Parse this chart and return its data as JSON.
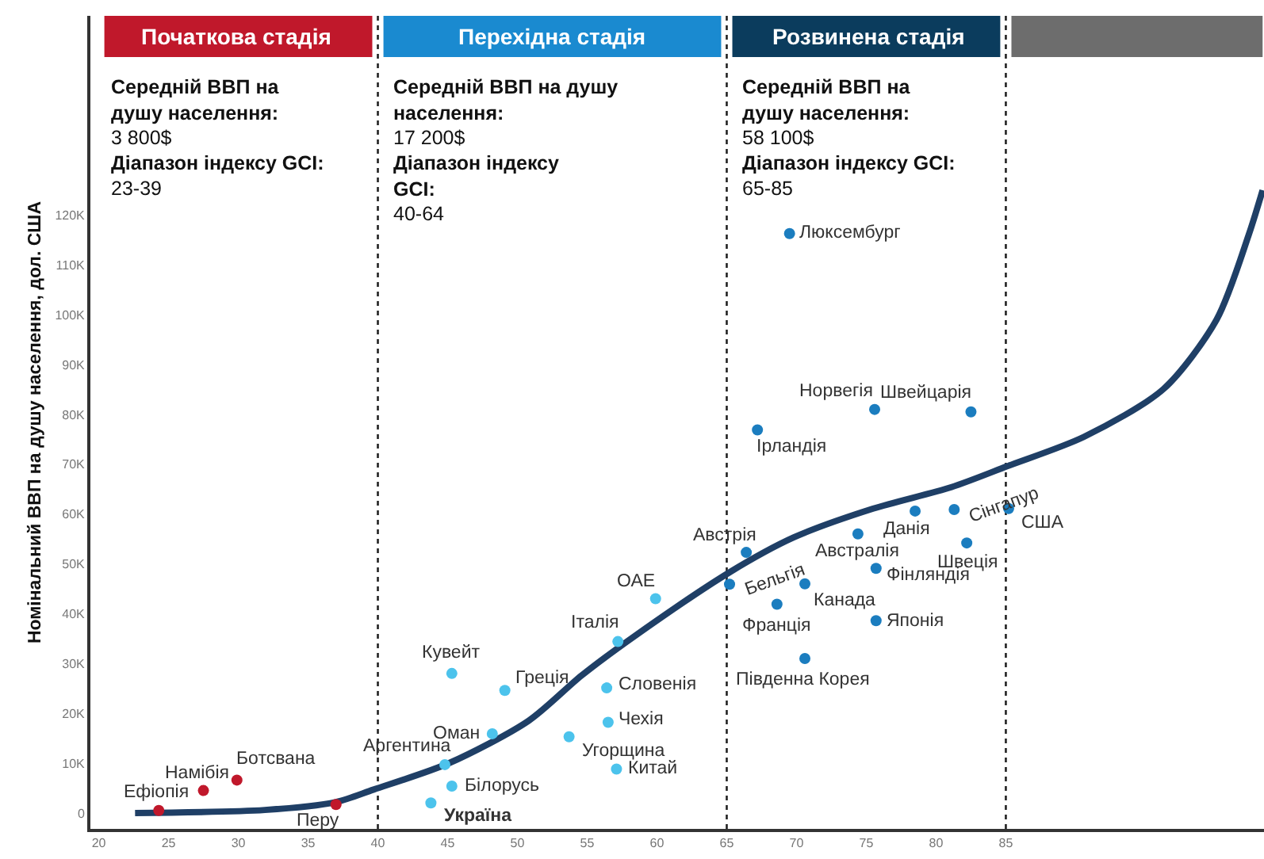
{
  "chart_data": {
    "type": "scatter",
    "ylabel": "Номінальний ВВП на душу населення, дол. США",
    "xlim": [
      19.4,
      103.5
    ],
    "xticks": [
      20,
      25,
      30,
      35,
      40,
      45,
      50,
      55,
      60,
      65,
      70,
      75,
      80,
      85
    ],
    "ylim": [
      -3200,
      160000
    ],
    "yticks": [
      {
        "value": 0,
        "label": "0"
      },
      {
        "value": 10000,
        "label": "10K"
      },
      {
        "value": 20000,
        "label": "20K"
      },
      {
        "value": 30000,
        "label": "30K"
      },
      {
        "value": 40000,
        "label": "40K"
      },
      {
        "value": 50000,
        "label": "50K"
      },
      {
        "value": 60000,
        "label": "60K"
      },
      {
        "value": 70000,
        "label": "70K"
      },
      {
        "value": 80000,
        "label": "80K"
      },
      {
        "value": 90000,
        "label": "90K"
      },
      {
        "value": 100000,
        "label": "100K"
      },
      {
        "value": 110000,
        "label": "110K"
      },
      {
        "value": 120000,
        "label": "120K"
      }
    ],
    "marker": "circle",
    "series": [
      {
        "color": "#c0182b",
        "x": [
          24.3,
          27.5,
          29.9,
          37.0
        ],
        "values": [
          500,
          4500,
          6600,
          1700
        ]
      },
      {
        "color": "#4cc3ec",
        "x": [
          44.8,
          45.3,
          49.1,
          48.2,
          45.3,
          43.8,
          57.2,
          56.4,
          56.5,
          53.7,
          57.1,
          59.9
        ],
        "values": [
          9700,
          28000,
          24600,
          15900,
          5400,
          2000,
          34400,
          25100,
          18200,
          15300,
          8800,
          43000
        ]
      },
      {
        "color": "#1b7dbf",
        "x": [
          69.5,
          75.6,
          82.5,
          67.2,
          66.4,
          65.2,
          74.4,
          78.5,
          81.3,
          85.2,
          82.2,
          75.7,
          70.6,
          68.6,
          75.7,
          70.6
        ],
        "values": [
          116300,
          81000,
          80500,
          76900,
          52300,
          45900,
          56000,
          60600,
          60900,
          61100,
          54200,
          49100,
          46000,
          41900,
          38600,
          31000
        ]
      },
      {
        "type": "line",
        "color": "#1f3f66",
        "line_style": "solid",
        "marker": "none",
        "x": [
          22.6,
          31.9,
          37.0,
          39.7,
          45.1,
          50.8,
          54.6,
          58.4,
          65.2,
          69.8,
          75.5,
          81.1,
          85.1,
          90.6,
          96.3,
          100.1,
          102.4,
          103.4
        ],
        "values": [
          0,
          600,
          2200,
          4700,
          10000,
          18500,
          27600,
          35500,
          48300,
          55300,
          61100,
          65400,
          69600,
          75500,
          85100,
          99000,
          116000,
          125000
        ]
      }
    ],
    "ref_lines": [
      {
        "axis": "x",
        "value": 40,
        "line_style": "dotted",
        "color": "#222222"
      },
      {
        "axis": "x",
        "value": 65,
        "line_style": "dotted",
        "color": "#222222"
      },
      {
        "axis": "x",
        "value": 85,
        "line_style": "dotted",
        "color": "#222222"
      }
    ],
    "annotations": [
      "Початкова стадія",
      "Середній ВВП на\nдушу населення:",
      "3 800$",
      "Діапазон індексу GCI:",
      "23-39",
      "Перехідна стадія",
      "Середній ВВП на душу\nнаселення:",
      "17 200$",
      "Діапазон індексу\nGCI:",
      "40-64",
      "Розвинена стадія",
      "Середній ВВП на\nдушу населення:",
      "58 100$",
      "Діапазон індексу GCI:",
      "65-85",
      {
        "text": "Ефіопія",
        "x": 24.3,
        "y": 500
      },
      {
        "text": "Намібія",
        "x": 27.5,
        "y": 4500
      },
      {
        "text": "Ботсвана",
        "x": 29.9,
        "y": 6600
      },
      {
        "text": "Перу",
        "x": 37.0,
        "y": 1700
      },
      {
        "text": "Аргентина",
        "x": 44.8,
        "y": 9700
      },
      {
        "text": "Кувейт",
        "x": 45.3,
        "y": 28000
      },
      {
        "text": "Греція",
        "x": 49.1,
        "y": 24600
      },
      {
        "text": "Оман",
        "x": 48.2,
        "y": 15900
      },
      {
        "text": "Білорусь",
        "x": 45.3,
        "y": 5400
      },
      {
        "text": "Україна",
        "x": 43.8,
        "y": 2000
      },
      {
        "text": "Італія",
        "x": 57.2,
        "y": 34400
      },
      {
        "text": "Словенія",
        "x": 56.4,
        "y": 25100
      },
      {
        "text": "Чехія",
        "x": 56.5,
        "y": 18200
      },
      {
        "text": "Угорщина",
        "x": 53.7,
        "y": 15300
      },
      {
        "text": "Китай",
        "x": 57.1,
        "y": 8800
      },
      {
        "text": "ОАЕ",
        "x": 59.9,
        "y": 43000
      },
      {
        "text": "Люксембург",
        "x": 69.5,
        "y": 116300
      },
      {
        "text": "Норвегія",
        "x": 75.6,
        "y": 81000
      },
      {
        "text": "Швейцарія",
        "x": 82.5,
        "y": 80500
      },
      {
        "text": "Ірландія",
        "x": 67.2,
        "y": 76900
      },
      {
        "text": "Австрія",
        "x": 66.4,
        "y": 52300
      },
      {
        "text": "Бельгія",
        "x": 65.2,
        "y": 45900
      },
      {
        "text": "Австралія",
        "x": 74.4,
        "y": 56000
      },
      {
        "text": "Данія",
        "x": 78.5,
        "y": 60600
      },
      {
        "text": "Сінгапур",
        "x": 81.3,
        "y": 60900
      },
      {
        "text": "США",
        "x": 85.2,
        "y": 61100
      },
      {
        "text": "Швеція",
        "x": 82.2,
        "y": 54200
      },
      {
        "text": "Фінляндія",
        "x": 75.7,
        "y": 49100
      },
      {
        "text": "Канада",
        "x": 70.6,
        "y": 46000
      },
      {
        "text": "Франція",
        "x": 68.6,
        "y": 41900
      },
      {
        "text": "Японія",
        "x": 75.7,
        "y": 38600
      },
      {
        "text": "Південна Корея",
        "x": 70.6,
        "y": 31000
      }
    ]
  }
}
